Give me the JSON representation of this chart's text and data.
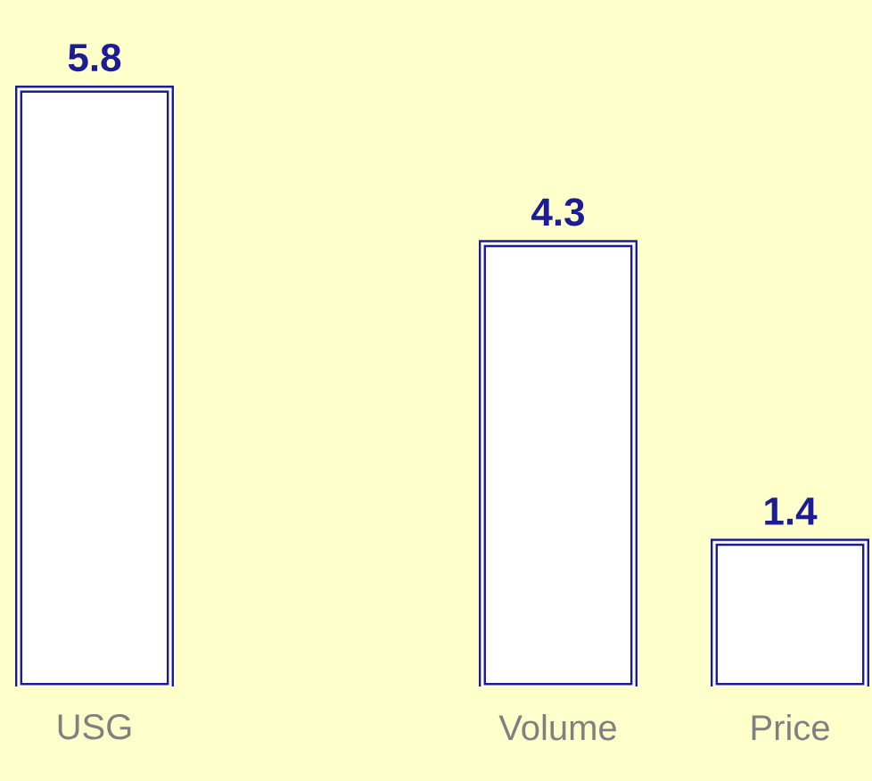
{
  "chart_data": {
    "type": "bar",
    "categories": [
      "USG",
      null,
      "Volume",
      "Price"
    ],
    "values": [
      5.8,
      null,
      4.3,
      1.4
    ],
    "color": "#ffffff",
    "data_labels": true,
    "tick_labels": "x"
  }
}
